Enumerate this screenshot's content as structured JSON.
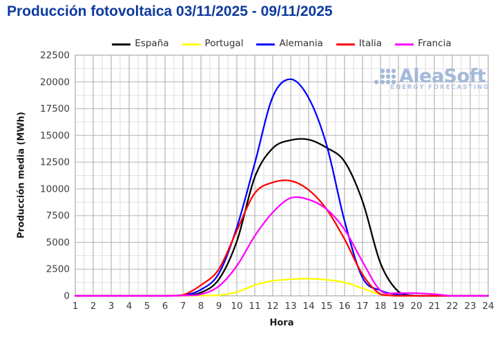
{
  "title": "Producción fotovoltaica 03/11/2025 - 09/11/2025",
  "title_color": "#0d3b9e",
  "watermark": {
    "brand": "AleaSoft",
    "tagline": "ENERGY FORECASTING",
    "color": "#9fb6d6",
    "tagline_color": "#acc0da"
  },
  "chart_data": {
    "type": "line",
    "title": "Producción fotovoltaica 03/11/2025 - 09/11/2025",
    "xlabel": "Hora",
    "ylabel": "Producción media (MWh)",
    "x": [
      1,
      2,
      3,
      4,
      5,
      6,
      7,
      8,
      9,
      10,
      11,
      12,
      13,
      14,
      15,
      16,
      17,
      18,
      19,
      20,
      21,
      22,
      23,
      24
    ],
    "xlim": [
      1,
      24
    ],
    "ylim": [
      0,
      22500
    ],
    "y_ticks": [
      0,
      2500,
      5000,
      7500,
      10000,
      12500,
      15000,
      17500,
      20000,
      22500
    ],
    "x_minor_step": 0.5,
    "y_minor_step": 1250,
    "grid": "major+minor",
    "legend_position": "top",
    "series": [
      {
        "name": "España",
        "color": "#000000",
        "values": [
          0,
          0,
          0,
          0,
          0,
          0,
          30,
          300,
          1550,
          5100,
          11100,
          13800,
          14550,
          14600,
          13850,
          12550,
          8850,
          3050,
          400,
          0,
          0,
          0,
          0,
          0
        ]
      },
      {
        "name": "Portugal",
        "color": "#ffff00",
        "values": [
          0,
          0,
          0,
          0,
          0,
          0,
          0,
          20,
          60,
          350,
          1000,
          1400,
          1550,
          1600,
          1500,
          1250,
          700,
          150,
          0,
          0,
          0,
          0,
          0,
          0
        ]
      },
      {
        "name": "Alemania",
        "color": "#0000ff",
        "values": [
          0,
          0,
          0,
          0,
          0,
          0,
          50,
          580,
          2100,
          6400,
          12400,
          18600,
          20250,
          18500,
          14100,
          7000,
          1700,
          500,
          100,
          0,
          0,
          0,
          0,
          0
        ]
      },
      {
        "name": "Italia",
        "color": "#ff0000",
        "values": [
          0,
          0,
          0,
          0,
          0,
          0,
          80,
          1000,
          2500,
          6100,
          9600,
          10600,
          10750,
          9900,
          8100,
          5300,
          2000,
          150,
          0,
          0,
          0,
          0,
          0,
          0
        ]
      },
      {
        "name": "Francia",
        "color": "#ff00ff",
        "values": [
          0,
          0,
          0,
          0,
          0,
          0,
          30,
          150,
          900,
          2800,
          5600,
          7800,
          9150,
          9000,
          8100,
          6200,
          3200,
          500,
          260,
          250,
          150,
          0,
          0,
          0
        ]
      }
    ]
  }
}
